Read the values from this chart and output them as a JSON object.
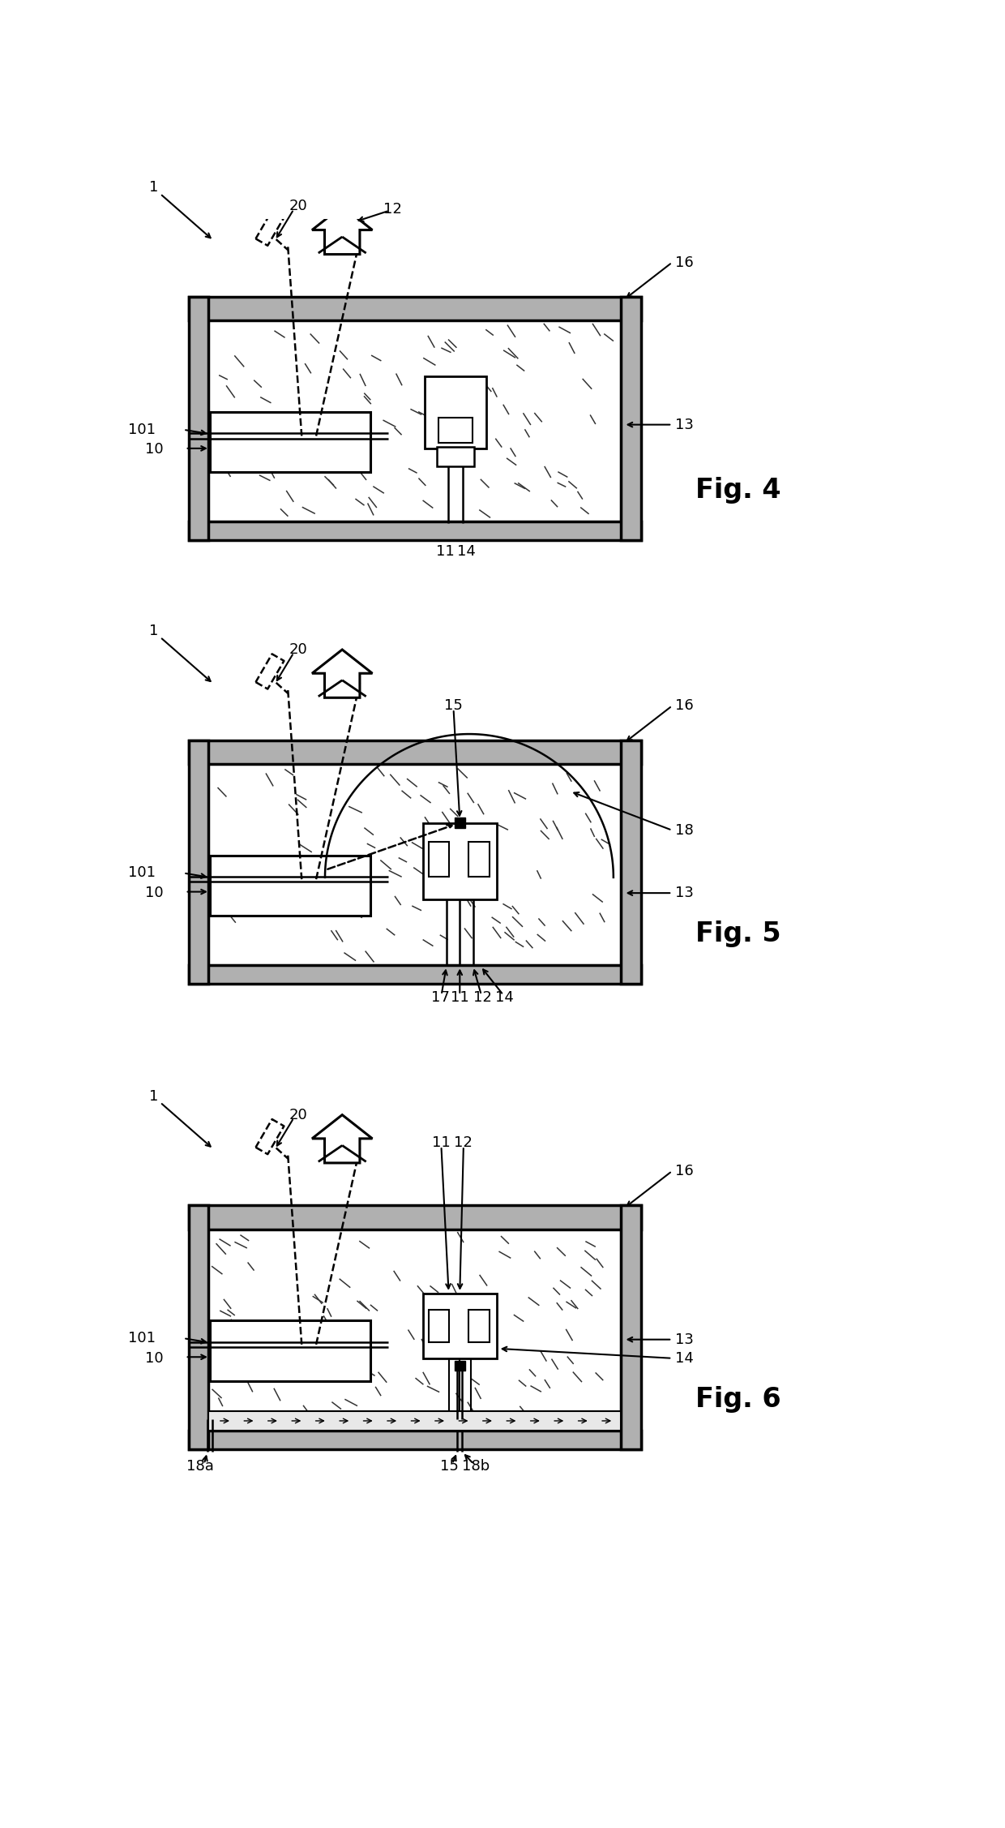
{
  "bg_color": "#ffffff",
  "lc": "#000000",
  "gray": "#aaaaaa",
  "fig4_label": "Fig. 4",
  "fig5_label": "Fig. 5",
  "fig6_label": "Fig. 6",
  "label_fs": 13,
  "fig_label_fs": 24
}
